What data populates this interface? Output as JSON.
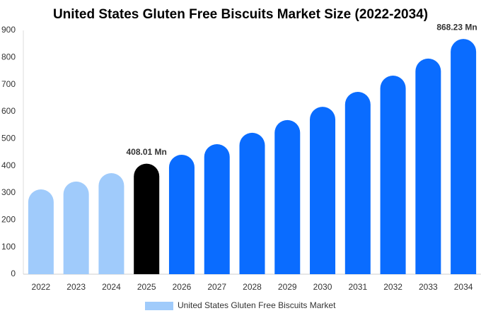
{
  "chart_data": {
    "type": "bar",
    "title": "United States Gluten Free Biscuits Market Size (2022-2034)",
    "categories": [
      "2022",
      "2023",
      "2024",
      "2025",
      "2026",
      "2027",
      "2028",
      "2029",
      "2030",
      "2031",
      "2032",
      "2033",
      "2034"
    ],
    "series": [
      {
        "name": "United States Gluten Free Biscuits Market",
        "color": "#a0cbfb",
        "values": [
          313,
          342,
          373,
          408.01,
          441,
          480,
          522,
          569,
          618,
          673,
          733,
          796,
          868.23
        ],
        "value_labels": [
          null,
          null,
          null,
          "408.01 Mn",
          null,
          null,
          null,
          null,
          null,
          null,
          null,
          null,
          "868.23 Mn"
        ],
        "bar_colors": [
          "#a0cbfb",
          "#a0cbfb",
          "#a0cbfb",
          "#000000",
          "#0a6cff",
          "#0a6cff",
          "#0a6cff",
          "#0a6cff",
          "#0a6cff",
          "#0a6cff",
          "#0a6cff",
          "#0a6cff",
          "#0a6cff"
        ]
      }
    ],
    "ylim": [
      0,
      900
    ],
    "yticks": [
      0,
      100,
      200,
      300,
      400,
      500,
      600,
      700,
      800,
      900
    ],
    "grid": false,
    "legend": "bottom"
  }
}
